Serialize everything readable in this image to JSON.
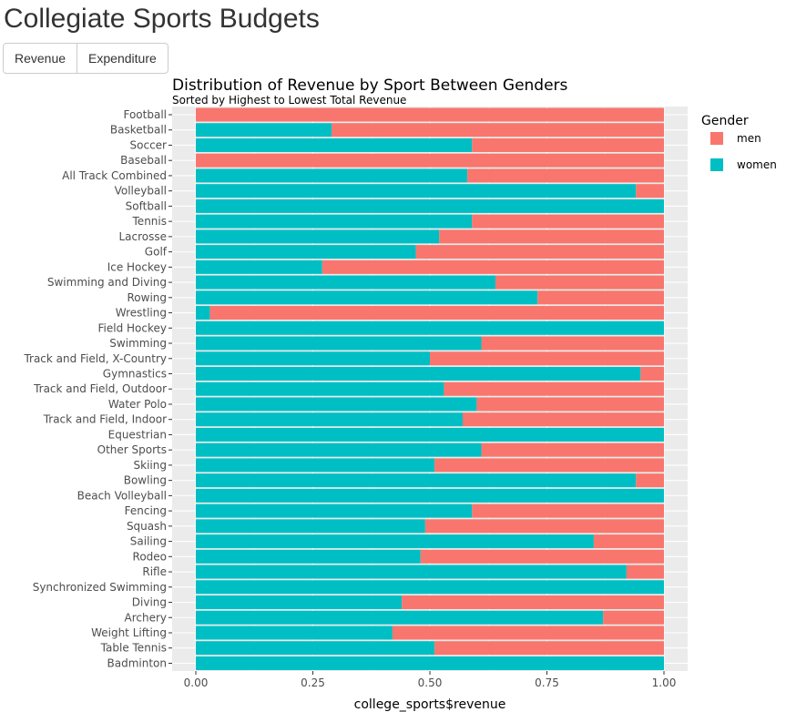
{
  "page": {
    "title": "Collegiate Sports Budgets",
    "tabs": [
      {
        "label": "Revenue",
        "active": true
      },
      {
        "label": "Expenditure",
        "active": false
      }
    ]
  },
  "chart_data": {
    "type": "bar",
    "orientation": "horizontal",
    "stacked": "proportional",
    "title": "Distribution of Revenue by Sport Between Genders",
    "subtitle": "Sorted by Highest to Lowest Total Revenue",
    "xlabel": "college_sports$revenue",
    "ylabel": "",
    "xlim": [
      0,
      1
    ],
    "x_ticks": [
      "0.00",
      "0.25",
      "0.50",
      "0.75",
      "1.00"
    ],
    "legend": {
      "title": "Gender",
      "position": "right"
    },
    "colors": {
      "men": "#F8766D",
      "women": "#00BFC4",
      "panel": "#EBEBEB",
      "grid": "#FFFFFF"
    },
    "categories": [
      "Football",
      "Basketball",
      "Soccer",
      "Baseball",
      "All Track Combined",
      "Volleyball",
      "Softball",
      "Tennis",
      "Lacrosse",
      "Golf",
      "Ice Hockey",
      "Swimming and Diving",
      "Rowing",
      "Wrestling",
      "Field Hockey",
      "Swimming",
      "Track and Field, X-Country",
      "Gymnastics",
      "Track and Field, Outdoor",
      "Water Polo",
      "Track and Field, Indoor",
      "Equestrian",
      "Other Sports",
      "Skiing",
      "Bowling",
      "Beach Volleyball",
      "Fencing",
      "Squash",
      "Sailing",
      "Rodeo",
      "Rifle",
      "Synchronized Swimming",
      "Diving",
      "Archery",
      "Weight Lifting",
      "Table Tennis",
      "Badminton"
    ],
    "series": [
      {
        "name": "women",
        "values": [
          0.0,
          0.29,
          0.59,
          0.0,
          0.58,
          0.94,
          1.0,
          0.59,
          0.52,
          0.47,
          0.27,
          0.64,
          0.73,
          0.03,
          1.0,
          0.61,
          0.5,
          0.95,
          0.53,
          0.6,
          0.57,
          1.0,
          0.61,
          0.51,
          0.94,
          1.0,
          0.59,
          0.49,
          0.85,
          0.48,
          0.92,
          1.0,
          0.44,
          0.87,
          0.42,
          0.51,
          1.0
        ]
      },
      {
        "name": "men",
        "values": [
          1.0,
          0.71,
          0.41,
          1.0,
          0.42,
          0.06,
          0.0,
          0.41,
          0.48,
          0.53,
          0.73,
          0.36,
          0.27,
          0.97,
          0.0,
          0.39,
          0.5,
          0.05,
          0.47,
          0.4,
          0.43,
          0.0,
          0.39,
          0.49,
          0.06,
          0.0,
          0.41,
          0.51,
          0.15,
          0.52,
          0.08,
          0.0,
          0.56,
          0.13,
          0.58,
          0.49,
          0.0
        ]
      }
    ]
  }
}
